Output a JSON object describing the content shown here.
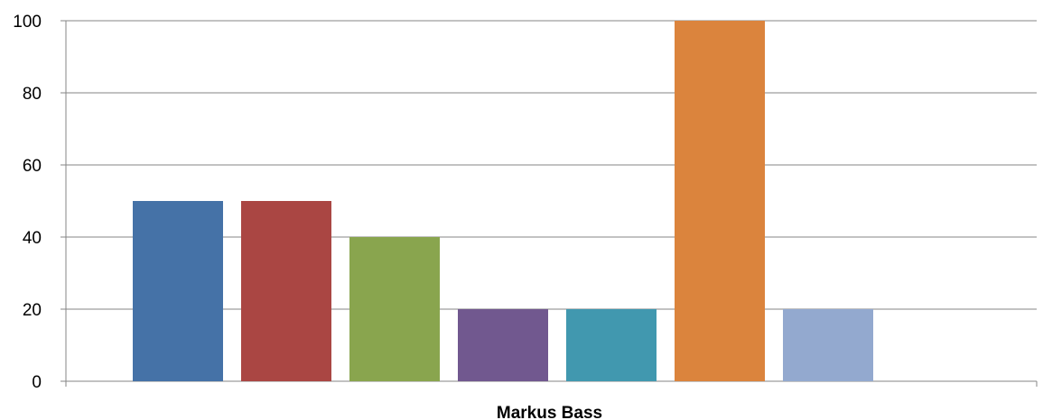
{
  "chart_data": {
    "type": "bar",
    "title": "",
    "xlabel": "",
    "ylabel": "",
    "categories": [
      "Markus Bass"
    ],
    "ylim": [
      0,
      100
    ],
    "yticks": [
      0,
      20,
      40,
      60,
      80,
      100
    ],
    "grid": true,
    "legend": "none",
    "series": [
      {
        "values": [
          50
        ],
        "color": "#4572A7"
      },
      {
        "values": [
          50
        ],
        "color": "#AA4643"
      },
      {
        "values": [
          40
        ],
        "color": "#89A54E"
      },
      {
        "values": [
          20
        ],
        "color": "#71588F"
      },
      {
        "values": [
          20
        ],
        "color": "#4198AF"
      },
      {
        "values": [
          100
        ],
        "color": "#DB843D"
      },
      {
        "values": [
          20
        ],
        "color": "#93A9CF"
      }
    ]
  }
}
